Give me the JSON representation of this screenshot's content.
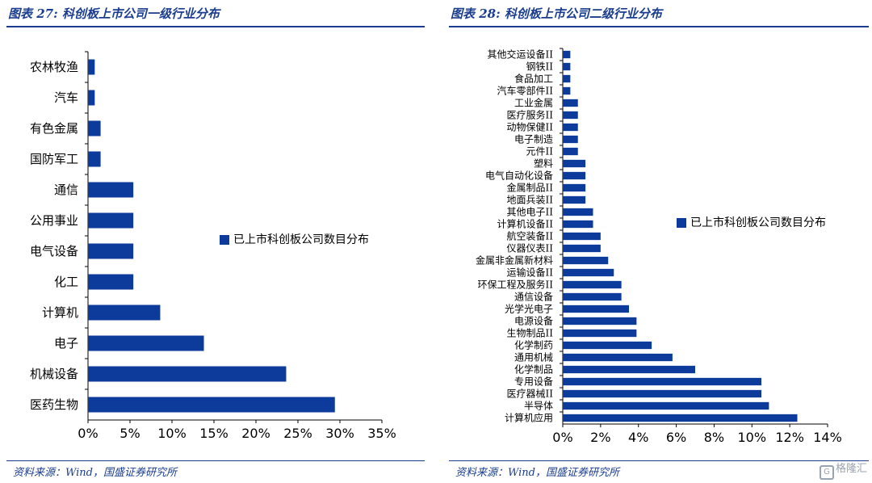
{
  "left_panel": {
    "title": "图表 27:  科创板上市公司一级行业分布",
    "source": "资料来源：Wind，国盛证券研究所"
  },
  "right_panel": {
    "title": "图表 28:  科创板上市公司二级行业分布",
    "source": "资料来源：Wind，国盛证券研究所"
  },
  "watermark": {
    "text": "格隆汇",
    "icon": "G"
  },
  "colors": {
    "bar": "#0d3b9b",
    "accent": "#1a3d8f"
  },
  "chart_data": [
    {
      "type": "bar",
      "orientation": "horizontal",
      "categories": [
        "农林牧渔",
        "汽车",
        "有色金属",
        "国防军工",
        "通信",
        "公用事业",
        "电气设备",
        "化工",
        "计算机",
        "电子",
        "机械设备",
        "医药生物"
      ],
      "values": [
        0.8,
        0.8,
        1.5,
        1.5,
        5.4,
        5.4,
        5.4,
        5.4,
        8.6,
        13.8,
        23.6,
        29.4
      ],
      "xlim": [
        0,
        35
      ],
      "xticks": [
        "0%",
        "5%",
        "10%",
        "15%",
        "20%",
        "25%",
        "30%",
        "35%"
      ],
      "series": [
        {
          "name": "已上市科创板公司数目分布"
        }
      ],
      "legend_position": "right",
      "grid": false
    },
    {
      "type": "bar",
      "orientation": "horizontal",
      "categories": [
        "其他交运设备II",
        "钢铁II",
        "食品加工",
        "汽车零部件II",
        "工业金属",
        "医疗服务II",
        "动物保健II",
        "电子制造",
        "元件II",
        "塑料",
        "电气自动化设备",
        "金属制品II",
        "地面兵装II",
        "其他电子II",
        "计算机设备II",
        "航空装备II",
        "仪器仪表II",
        "金属非金属新材料",
        "运输设备II",
        "环保工程及服务II",
        "通信设备",
        "光学光电子",
        "电源设备",
        "生物制品II",
        "化学制药",
        "通用机械",
        "化学制品",
        "专用设备",
        "医疗器械II",
        "半导体",
        "计算机应用"
      ],
      "values": [
        0.4,
        0.4,
        0.4,
        0.4,
        0.8,
        0.8,
        0.8,
        0.8,
        0.8,
        1.2,
        1.2,
        1.2,
        1.2,
        1.6,
        1.6,
        2.0,
        2.0,
        2.4,
        2.7,
        3.1,
        3.1,
        3.5,
        3.9,
        3.9,
        4.7,
        5.8,
        7.0,
        10.5,
        10.5,
        10.9,
        12.4
      ],
      "xlim": [
        0,
        14
      ],
      "xticks": [
        "0%",
        "2%",
        "4%",
        "6%",
        "8%",
        "10%",
        "12%",
        "14%"
      ],
      "series": [
        {
          "name": "已上市科创板公司数目分布"
        }
      ],
      "legend_position": "right",
      "grid": false
    }
  ]
}
